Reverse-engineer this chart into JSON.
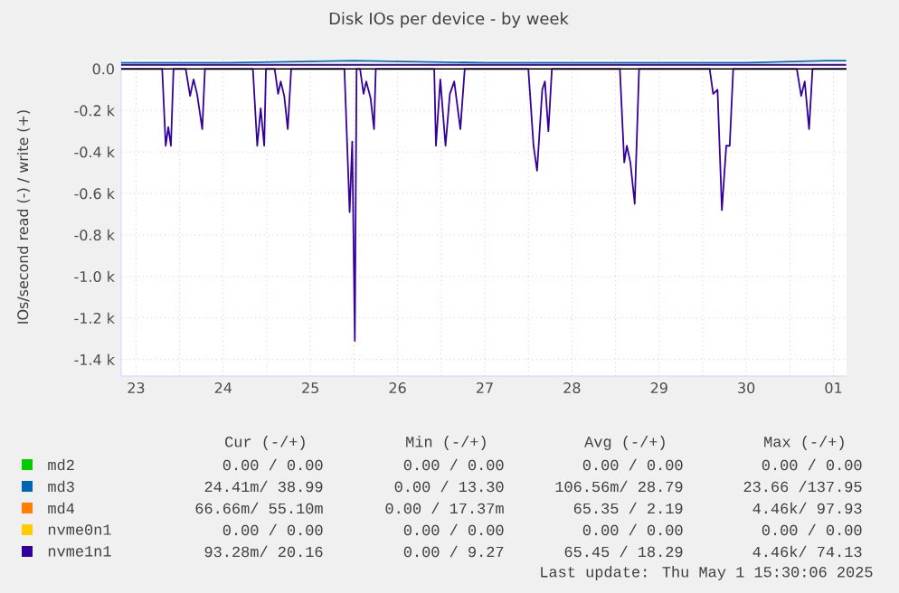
{
  "chart_data": {
    "type": "line",
    "title": "Disk IOs per device - by week",
    "ylabel": "IOs/second read (-) / write (+)",
    "xlim": [
      "2025-04-23T07:55",
      "2025-05-01T15:36"
    ],
    "ylim": [
      -1480,
      45
    ],
    "xticks": [
      {
        "value": "2025-04-23T12:00",
        "label": "23"
      },
      {
        "value": "2025-04-24T00:00",
        "label": null
      },
      {
        "value": "2025-04-24T12:00",
        "label": "24"
      },
      {
        "value": "2025-04-25T00:00",
        "label": null
      },
      {
        "value": "2025-04-25T12:00",
        "label": "25"
      },
      {
        "value": "2025-04-26T00:00",
        "label": null
      },
      {
        "value": "2025-04-26T12:00",
        "label": "26"
      },
      {
        "value": "2025-04-27T00:00",
        "label": null
      },
      {
        "value": "2025-04-27T12:00",
        "label": "27"
      },
      {
        "value": "2025-04-28T00:00",
        "label": null
      },
      {
        "value": "2025-04-28T12:00",
        "label": "28"
      },
      {
        "value": "2025-04-29T00:00",
        "label": null
      },
      {
        "value": "2025-04-29T12:00",
        "label": "29"
      },
      {
        "value": "2025-04-30T00:00",
        "label": null
      },
      {
        "value": "2025-04-30T12:00",
        "label": "30"
      },
      {
        "value": "2025-05-01T00:00",
        "label": null
      },
      {
        "value": "2025-05-01T12:00",
        "label": "01"
      }
    ],
    "yticks": [
      {
        "value": 0,
        "label": "0.0"
      },
      {
        "value": -200,
        "label": "-0.2 k"
      },
      {
        "value": -400,
        "label": "-0.4 k"
      },
      {
        "value": -600,
        "label": "-0.6 k"
      },
      {
        "value": -800,
        "label": "-0.8 k"
      },
      {
        "value": -1000,
        "label": "-1.0 k"
      },
      {
        "value": -1200,
        "label": "-1.2 k"
      },
      {
        "value": -1400,
        "label": "-1.4 k"
      }
    ],
    "grid": true,
    "legend": "bottom",
    "ref_lines": [
      {
        "axis": "y",
        "value": 0,
        "color": "#000000"
      }
    ],
    "series": [
      {
        "name": "md2",
        "color": "#00cc00"
      },
      {
        "name": "md3",
        "color": "#0066b3",
        "x": [
          "2025-04-23T07:55",
          "2025-04-24T12:00",
          "2025-04-26T00:00",
          "2025-04-27T12:00",
          "2025-04-29T00:00",
          "2025-04-30T12:00",
          "2025-05-01T10:00",
          "2025-05-01T15:30"
        ],
        "values": [
          30,
          30,
          40,
          30,
          30,
          30,
          40,
          40
        ]
      },
      {
        "name": "md4",
        "color": "#ff8000"
      },
      {
        "name": "nvme0n1",
        "color": "#ffcc00"
      },
      {
        "name": "nvme1n1",
        "color": "#330099",
        "x": [
          "2025-04-23T07:55",
          "2025-05-01T15:30"
        ],
        "values": [
          20,
          20
        ]
      },
      {
        "color": "#330099",
        "x": [
          "2025-04-23T07:55",
          "2025-04-23T19:12",
          "2025-04-23T20:10",
          "2025-04-23T20:53",
          "2025-04-23T21:36",
          "2025-04-23T22:19",
          "2025-04-24T01:41",
          "2025-04-24T02:53",
          "2025-04-24T03:50",
          "2025-04-24T04:48",
          "2025-04-24T06:14",
          "2025-04-24T06:58",
          "2025-04-24T20:10",
          "2025-04-24T21:22",
          "2025-04-24T22:19",
          "2025-04-24T23:17",
          "2025-04-24T23:46",
          "2025-04-25T02:10",
          "2025-04-25T03:07",
          "2025-04-25T03:50",
          "2025-04-25T04:48",
          "2025-04-25T05:46",
          "2025-04-25T06:43",
          "2025-04-25T21:22",
          "2025-04-25T22:48",
          "2025-04-25T23:31",
          "2025-04-26T00:14",
          "2025-04-26T00:43",
          "2025-04-26T01:41",
          "2025-04-26T02:38",
          "2025-04-26T03:22",
          "2025-04-26T04:34",
          "2025-04-26T05:31",
          "2025-04-26T06:00",
          "2025-04-26T22:05",
          "2025-04-26T22:34",
          "2025-04-26T23:46",
          "2025-04-27T01:12",
          "2025-04-27T02:24",
          "2025-04-27T03:36",
          "2025-04-27T05:17",
          "2025-04-27T06:29",
          "2025-04-28T00:00",
          "2025-04-28T01:26",
          "2025-04-28T02:24",
          "2025-04-28T03:50",
          "2025-04-28T04:34",
          "2025-04-28T05:31",
          "2025-04-28T06:29",
          "2025-04-29T01:12",
          "2025-04-29T02:24",
          "2025-04-29T03:07",
          "2025-04-29T04:05",
          "2025-04-29T05:17",
          "2025-04-29T06:29",
          "2025-04-30T01:55",
          "2025-04-30T02:53",
          "2025-04-30T04:05",
          "2025-04-30T05:17",
          "2025-04-30T06:29",
          "2025-04-30T07:26",
          "2025-04-30T08:24",
          "2025-05-01T01:55",
          "2025-05-01T03:07",
          "2025-05-01T04:05",
          "2025-05-01T05:17",
          "2025-05-01T06:14",
          "2025-05-01T15:30"
        ],
        "values": [
          0,
          0,
          -370,
          -280,
          -370,
          0,
          0,
          -130,
          -50,
          -120,
          -290,
          0,
          0,
          -370,
          -190,
          -370,
          0,
          0,
          -120,
          -60,
          -130,
          -290,
          0,
          0,
          -690,
          -350,
          -1310,
          0,
          0,
          -120,
          -60,
          -140,
          -290,
          0,
          0,
          -370,
          -50,
          -370,
          -120,
          -60,
          -290,
          0,
          0,
          -370,
          -490,
          -100,
          -60,
          -300,
          0,
          0,
          -450,
          -370,
          -450,
          -650,
          0,
          0,
          -120,
          -100,
          -680,
          -370,
          -370,
          0,
          0,
          -130,
          -60,
          -290,
          0,
          0
        ]
      }
    ],
    "annotations": [
      "Cur (-/+)",
      "Min (-/+)",
      "Avg (-/+)",
      "Max (-/+)",
      "0.00 /  0.00",
      "0.00 /  0.00",
      "0.00 /  0.00",
      "0.00 /  0.00",
      "24.41m/ 38.99",
      "0.00 / 13.30",
      "106.56m/ 28.79",
      "23.66 /137.95",
      "66.66m/ 55.10m",
      "0.00 / 17.37m",
      "65.35 /  2.19",
      "4.46k/ 97.93",
      "0.00 /  0.00",
      "0.00 /  0.00",
      "0.00 /  0.00",
      "0.00 /  0.00",
      "93.28m/ 20.16",
      "0.00 /  9.27",
      "65.45 / 18.29",
      "4.46k/ 74.13",
      "Last update:  Thu May  1 15:30:06 2025"
    ]
  }
}
